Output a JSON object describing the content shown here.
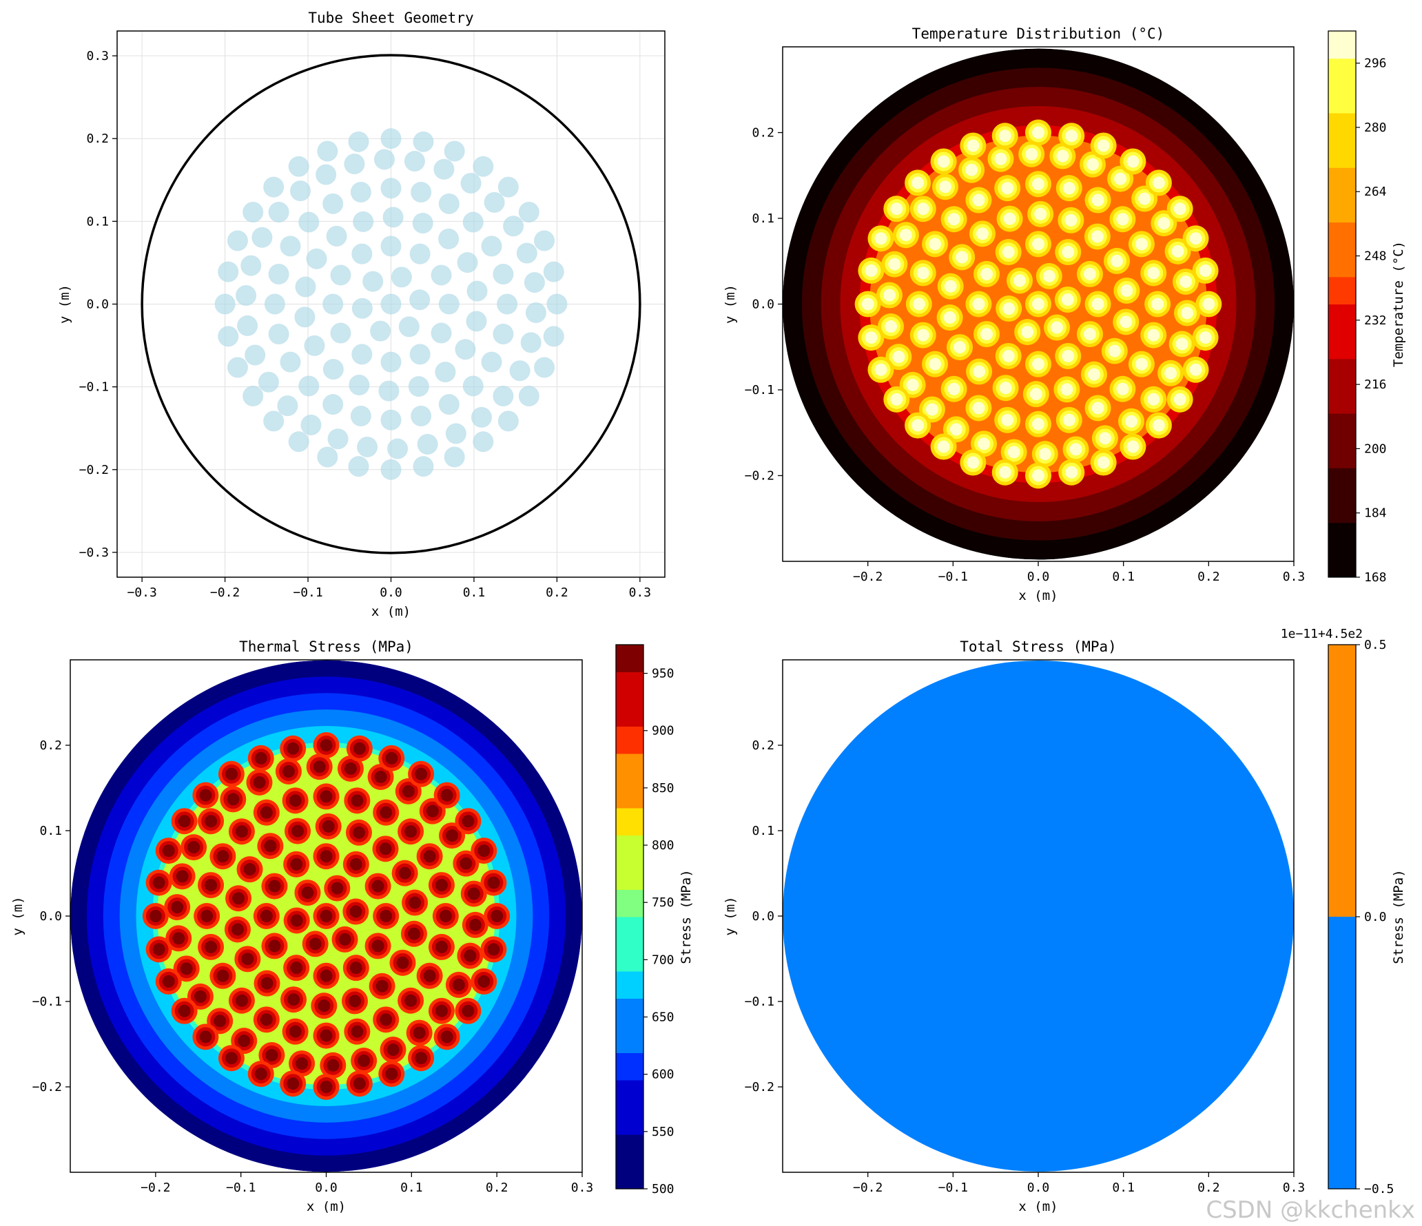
{
  "watermark": "CSDN @kkchenkx",
  "chart_data": [
    {
      "type": "scatter",
      "title": "Tube Sheet Geometry",
      "xlabel": "x (m)",
      "ylabel": "y (m)",
      "xlim": [
        -0.33,
        0.33
      ],
      "ylim": [
        -0.33,
        0.33
      ],
      "grid": true,
      "xticks": [
        -0.3,
        -0.2,
        -0.1,
        0.0,
        0.1,
        0.2,
        0.3
      ],
      "yticks": [
        -0.3,
        -0.2,
        -0.1,
        0.0,
        0.1,
        0.2,
        0.3
      ],
      "xtick_labels": [
        "−0.3",
        "−0.2",
        "−0.1",
        "0.0",
        "0.1",
        "0.2",
        "0.3"
      ],
      "ytick_labels": [
        "−0.3",
        "−0.2",
        "−0.1",
        "0.0",
        "0.1",
        "0.2",
        "0.3"
      ],
      "shell_radius": 0.3,
      "tube_color": "#add8e6",
      "shell_color": "#000000",
      "tube_rings": [
        {
          "radius": 0.0,
          "count": 1
        },
        {
          "radius": 0.035,
          "count": 6
        },
        {
          "radius": 0.07,
          "count": 12
        },
        {
          "radius": 0.105,
          "count": 18
        },
        {
          "radius": 0.14,
          "count": 24
        },
        {
          "radius": 0.175,
          "count": 30
        },
        {
          "radius": 0.2,
          "count": 32
        }
      ]
    },
    {
      "type": "heatmap",
      "title": "Temperature Distribution (°C)",
      "xlabel": "x (m)",
      "ylabel": "y (m)",
      "xlim": [
        -0.3,
        0.3
      ],
      "ylim": [
        -0.3,
        0.3
      ],
      "xticks": [
        -0.2,
        -0.1,
        0.0,
        0.1,
        0.2,
        0.3
      ],
      "yticks": [
        -0.2,
        -0.1,
        0.0,
        0.1,
        0.2
      ],
      "xtick_labels": [
        "−0.2",
        "−0.1",
        "0.0",
        "0.1",
        "0.2",
        "0.3"
      ],
      "ytick_labels": [
        "−0.2",
        "−0.1",
        "0.0",
        "0.1",
        "0.2"
      ],
      "colormap": "hot",
      "colorbar_label": "Temperature (°C)",
      "colorbar_range": [
        168,
        304
      ],
      "colorbar_ticks": [
        168,
        184,
        200,
        216,
        232,
        248,
        264,
        280,
        296
      ],
      "field_range": [
        170,
        302
      ],
      "colors": [
        "#0a0000",
        "#3a0000",
        "#700000",
        "#a80000",
        "#e00000",
        "#ff3a00",
        "#ff7000",
        "#ffa800",
        "#ffd800",
        "#ffff40",
        "#ffffd0"
      ]
    },
    {
      "type": "heatmap",
      "title": "Thermal Stress (MPa)",
      "xlabel": "x (m)",
      "ylabel": "y (m)",
      "xlim": [
        -0.3,
        0.3
      ],
      "ylim": [
        -0.3,
        0.3
      ],
      "xticks": [
        -0.2,
        -0.1,
        0.0,
        0.1,
        0.2,
        0.3
      ],
      "yticks": [
        -0.2,
        -0.1,
        0.0,
        0.1,
        0.2
      ],
      "xtick_labels": [
        "−0.2",
        "−0.1",
        "0.0",
        "0.1",
        "0.2",
        "0.3"
      ],
      "ytick_labels": [
        "−0.2",
        "−0.1",
        "0.0",
        "0.1",
        "0.2"
      ],
      "colormap": "jet",
      "colorbar_label": "Stress (MPa)",
      "colorbar_range": [
        500,
        975
      ],
      "colorbar_ticks": [
        500,
        550,
        600,
        650,
        700,
        750,
        800,
        850,
        900,
        950
      ],
      "field_range": [
        505,
        972
      ],
      "colors": [
        "#00007f",
        "#0000d0",
        "#0030ff",
        "#0080ff",
        "#00d0ff",
        "#30ffc8",
        "#80ff80",
        "#c8ff30",
        "#ffe000",
        "#ff9000",
        "#ff3000",
        "#d00000",
        "#7f0000"
      ]
    },
    {
      "type": "heatmap",
      "title": "Total Stress (MPa)",
      "xlabel": "x (m)",
      "ylabel": "y (m)",
      "xlim": [
        -0.3,
        0.3
      ],
      "ylim": [
        -0.3,
        0.3
      ],
      "xticks": [
        -0.2,
        -0.1,
        0.0,
        0.1,
        0.2,
        0.3
      ],
      "yticks": [
        -0.2,
        -0.1,
        0.0,
        0.1,
        0.2
      ],
      "xtick_labels": [
        "−0.2",
        "−0.1",
        "0.0",
        "0.1",
        "0.2",
        "0.3"
      ],
      "ytick_labels": [
        "−0.2",
        "−0.1",
        "0.0",
        "0.1",
        "0.2"
      ],
      "colorbar_label": "Stress (MPa)",
      "colorbar_offset": "1e−11+4.5e2",
      "colorbar_range": [
        -0.5,
        0.5
      ],
      "colorbar_ticks": [
        -0.5,
        0.0,
        0.5
      ],
      "colorbar_tick_labels": [
        "−0.5",
        "0.0",
        "0.5"
      ],
      "colorbar_bands": [
        {
          "from": -0.5,
          "to": 0.0,
          "color": "#0080ff"
        },
        {
          "from": 0.0,
          "to": 0.5,
          "color": "#ff8c00"
        }
      ],
      "field_color": "#0080ff"
    }
  ]
}
